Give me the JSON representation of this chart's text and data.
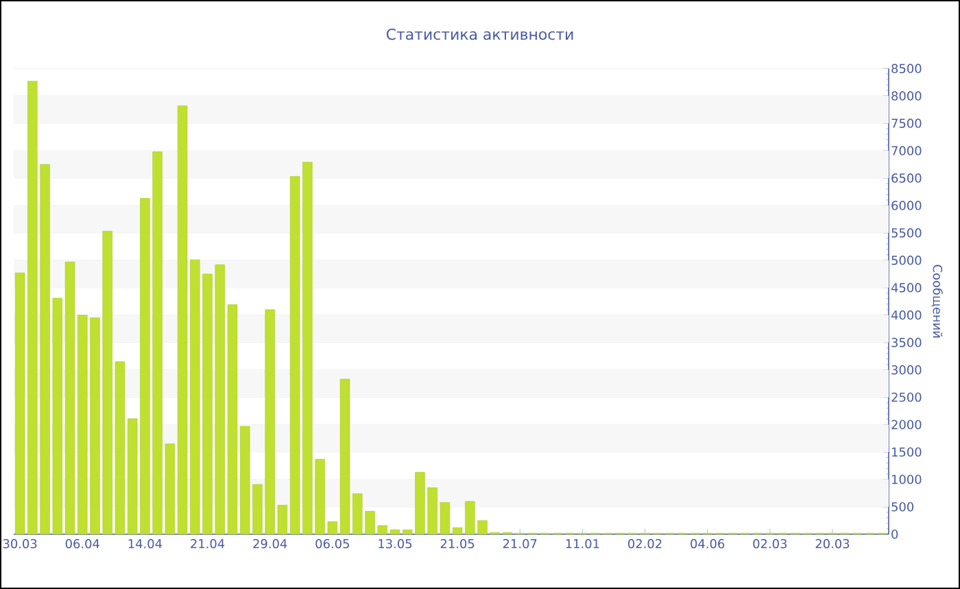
{
  "chart_data": {
    "type": "bar",
    "title": "Статистика активности",
    "ylabel": "Сообщений",
    "categories": [
      "30.03",
      null,
      null,
      null,
      null,
      "06.04",
      null,
      null,
      null,
      null,
      "14.04",
      null,
      null,
      null,
      null,
      "21.04",
      null,
      null,
      null,
      null,
      "29.04",
      null,
      null,
      null,
      null,
      "06.05",
      null,
      null,
      null,
      null,
      "13.05",
      null,
      null,
      null,
      null,
      "21.05",
      null,
      null,
      null,
      null,
      "21.07",
      null,
      null,
      null,
      null,
      "11.01",
      null,
      null,
      null,
      null,
      "02.02",
      null,
      null,
      null,
      null,
      "04.06",
      null,
      null,
      null,
      null,
      "02.03",
      null,
      null,
      null,
      null,
      "20.03",
      null,
      null,
      null,
      null
    ],
    "values": [
      4770,
      8270,
      6750,
      4310,
      4970,
      4000,
      3950,
      5530,
      3150,
      2110,
      6130,
      6980,
      1650,
      7820,
      5010,
      4750,
      4920,
      4190,
      1970,
      910,
      4100,
      530,
      6530,
      6790,
      1370,
      230,
      2830,
      740,
      420,
      160,
      80,
      80,
      1130,
      850,
      580,
      120,
      600,
      250,
      30,
      30,
      20,
      20,
      20,
      20,
      20,
      20,
      20,
      20,
      20,
      20,
      20,
      20,
      20,
      20,
      20,
      20,
      20,
      20,
      20,
      20,
      20,
      20,
      20,
      20,
      20,
      20,
      20,
      20,
      20,
      20
    ],
    "color": "#bfe030",
    "ylim": [
      0,
      8500
    ],
    "yticks": [
      0,
      500,
      1000,
      1500,
      2000,
      2500,
      3000,
      3500,
      4000,
      4500,
      5000,
      5500,
      6000,
      6500,
      7000,
      7500,
      8000,
      8500
    ],
    "grid": "y"
  }
}
